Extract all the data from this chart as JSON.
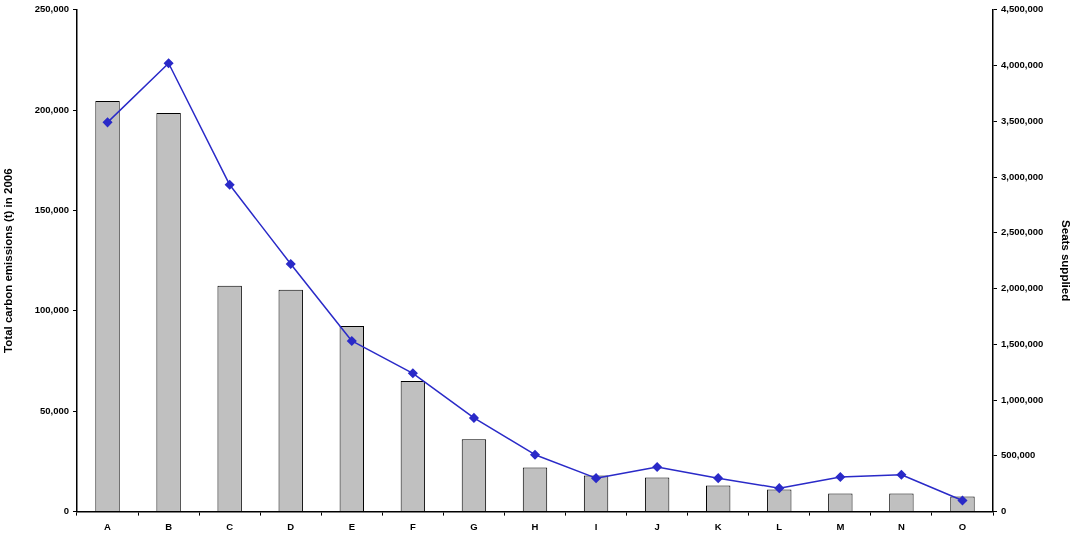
{
  "chart_data": {
    "type": "bar",
    "ylabel": "Total carbon emissions (t) in 2006",
    "y2label": "Seats supplied",
    "categories": [
      "A",
      "B",
      "C",
      "D",
      "E",
      "F",
      "G",
      "H",
      "I",
      "J",
      "K",
      "L",
      "M",
      "N",
      "O"
    ],
    "series": [
      {
        "color": "#c0c0c0",
        "values": [
          204500,
          198500,
          112500,
          110500,
          92500,
          65000,
          36000,
          22000,
          18000,
          17000,
          13000,
          11000,
          9000,
          9000,
          7500
        ]
      },
      {
        "type": "line",
        "axis": "y2",
        "color": "#2a2ac8",
        "marker": "diamond",
        "line_style": "solid",
        "values": [
          3490000,
          4020000,
          2930000,
          2220000,
          1530000,
          1240000,
          840000,
          510000,
          300000,
          400000,
          300000,
          210000,
          310000,
          330000,
          100000
        ]
      }
    ],
    "ylim": [
      0,
      250000
    ],
    "yticks": [
      {
        "value": 0,
        "label": "0"
      },
      {
        "value": 50000,
        "label": "50,000"
      },
      {
        "value": 100000,
        "label": "100,000"
      },
      {
        "value": 150000,
        "label": "150,000"
      },
      {
        "value": 200000,
        "label": "200,000"
      },
      {
        "value": 250000,
        "label": "250,000"
      }
    ],
    "y2lim": [
      0,
      4500000
    ],
    "y2ticks": [
      {
        "value": 0,
        "label": "0"
      },
      {
        "value": 500000,
        "label": "500,000"
      },
      {
        "value": 1000000,
        "label": "1,000,000"
      },
      {
        "value": 1500000,
        "label": "1,500,000"
      },
      {
        "value": 2000000,
        "label": "2,000,000"
      },
      {
        "value": 2500000,
        "label": "2,500,000"
      },
      {
        "value": 3000000,
        "label": "3,000,000"
      },
      {
        "value": 3500000,
        "label": "3,500,000"
      },
      {
        "value": 4000000,
        "label": "4,000,000"
      },
      {
        "value": 4500000,
        "label": "4,500,000"
      }
    ],
    "grid": false,
    "legend": false
  }
}
